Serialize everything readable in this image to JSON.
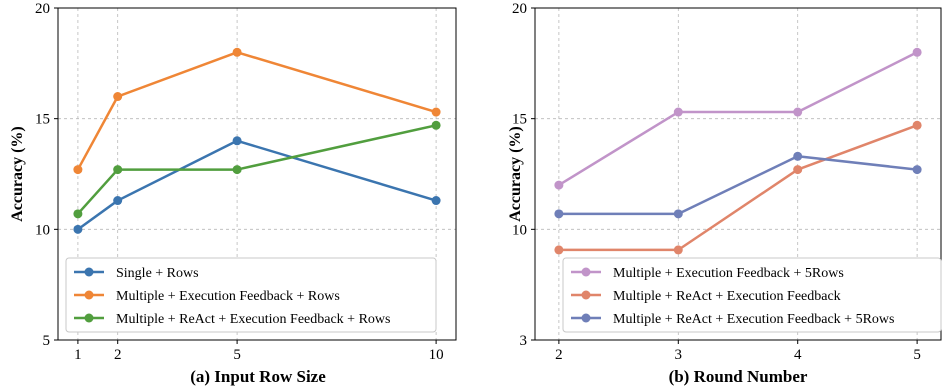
{
  "chart_data": [
    {
      "type": "line",
      "caption": "(a) Input Row Size",
      "ylabel": "Accuracy (%)",
      "x_ticks": [
        "1",
        "2",
        "5",
        "10"
      ],
      "y_ticks": [
        "5",
        "10",
        "15",
        "20"
      ],
      "ylim": [
        5,
        20
      ],
      "xlim": [
        0.5,
        10.5
      ],
      "grid": true,
      "legend_position": "bottom",
      "series": [
        {
          "name": "Single + Rows",
          "color": "#3b75af",
          "x": [
            1,
            2,
            5,
            10
          ],
          "values": [
            10.0,
            11.3,
            14.0,
            11.3
          ]
        },
        {
          "name": "Multiple + Execution Feedback + Rows",
          "color": "#ef8636",
          "x": [
            1,
            2,
            5,
            10
          ],
          "values": [
            12.7,
            16.0,
            18.0,
            15.3
          ]
        },
        {
          "name": "Multiple + ReAct + Execution Feedback + Rows",
          "color": "#519e3e",
          "x": [
            1,
            2,
            5,
            10
          ],
          "values": [
            10.7,
            12.7,
            12.7,
            14.7
          ]
        }
      ]
    },
    {
      "type": "line",
      "caption": "(b) Round Number",
      "ylabel": "Accuracy (%)",
      "x_ticks": [
        "2",
        "3",
        "4",
        "5"
      ],
      "y_ticks": [
        "3",
        "10",
        "15",
        "20"
      ],
      "y_tick_values": [
        3,
        10,
        15,
        20
      ],
      "ylim": [
        3,
        20
      ],
      "xlim": [
        1.8,
        5.2
      ],
      "y_axis_note": "non-linear y axis: tick labels 3, 10, 15, 20 are drawn at equal spacing",
      "grid": true,
      "legend_position": "bottom",
      "series": [
        {
          "name": "Multiple + Execution Feedback + 5Rows",
          "color": "#c194c9",
          "x": [
            2,
            3,
            4,
            5
          ],
          "values": [
            12.0,
            15.3,
            15.3,
            18.0
          ]
        },
        {
          "name": "Multiple + ReAct + Execution Feedback",
          "color": "#e0856a",
          "x": [
            2,
            3,
            4,
            5
          ],
          "values": [
            8.7,
            8.7,
            12.7,
            14.7
          ]
        },
        {
          "name": "Multiple + ReAct + Execution Feedback + 5Rows",
          "color": "#6f7fb8",
          "x": [
            2,
            3,
            4,
            5
          ],
          "values": [
            10.7,
            10.7,
            13.3,
            12.7
          ]
        }
      ]
    }
  ]
}
